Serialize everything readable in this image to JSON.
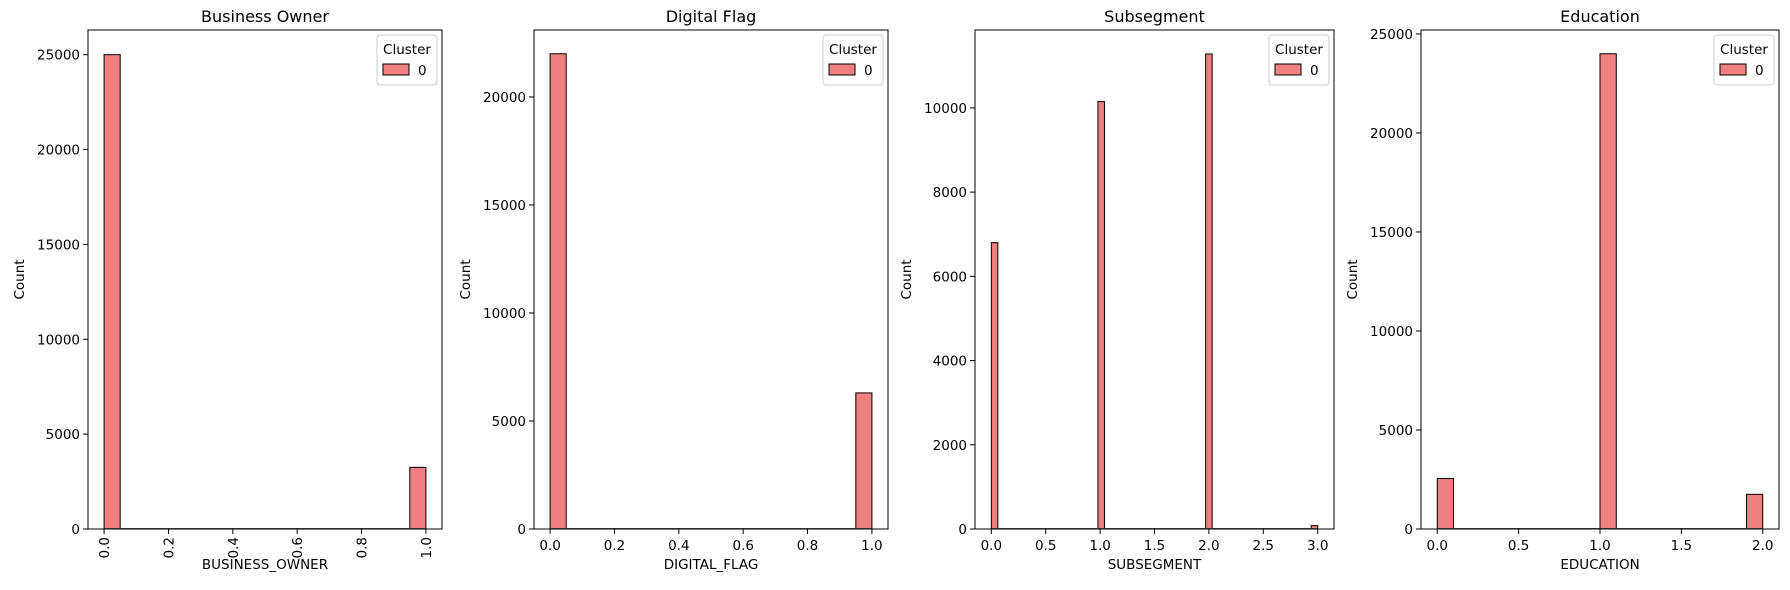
{
  "colors": {
    "bar_fill": "#f08080",
    "bar_edge": "#000000"
  },
  "chart_data": [
    {
      "type": "bar",
      "title": "Business Owner",
      "xlabel": "BUSINESS_OWNER",
      "ylabel": "Count",
      "xlim": [
        -0.05,
        1.05
      ],
      "ylim": [
        0,
        26300
      ],
      "xticks": [
        0.0,
        0.2,
        0.4,
        0.6,
        0.8,
        1.0
      ],
      "xtick_labels": [
        "0.0",
        "0.2",
        "0.4",
        "0.6",
        "0.8",
        "1.0"
      ],
      "xtick_rotation": -90,
      "yticks": [
        0,
        5000,
        10000,
        15000,
        20000,
        25000
      ],
      "ytick_labels": [
        "0",
        "5000",
        "10000",
        "15000",
        "20000",
        "25000"
      ],
      "bin_width": 0.05,
      "bars": [
        {
          "x": 0.0,
          "value": 25000
        },
        {
          "x": 0.95,
          "value": 3250
        }
      ],
      "legend": {
        "title": "Cluster",
        "entries": [
          "0"
        ],
        "position": "top-right"
      }
    },
    {
      "type": "bar",
      "title": "Digital Flag",
      "xlabel": "DIGITAL_FLAG",
      "ylabel": "Count",
      "xlim": [
        -0.05,
        1.05
      ],
      "ylim": [
        0,
        23100
      ],
      "xticks": [
        0.0,
        0.2,
        0.4,
        0.6,
        0.8,
        1.0
      ],
      "xtick_labels": [
        "0.0",
        "0.2",
        "0.4",
        "0.6",
        "0.8",
        "1.0"
      ],
      "xtick_rotation": 0,
      "yticks": [
        0,
        5000,
        10000,
        15000,
        20000
      ],
      "ytick_labels": [
        "0",
        "5000",
        "10000",
        "15000",
        "20000"
      ],
      "bin_width": 0.05,
      "bars": [
        {
          "x": 0.0,
          "value": 22000
        },
        {
          "x": 0.95,
          "value": 6300
        }
      ],
      "legend": {
        "title": "Cluster",
        "entries": [
          "0"
        ],
        "position": "top-right"
      }
    },
    {
      "type": "bar",
      "title": "Subsegment",
      "xlabel": "SUBSEGMENT",
      "ylabel": "Count",
      "xlim": [
        -0.15,
        3.15
      ],
      "ylim": [
        0,
        11850
      ],
      "xticks": [
        0.0,
        0.5,
        1.0,
        1.5,
        2.0,
        2.5,
        3.0
      ],
      "xtick_labels": [
        "0.0",
        "0.5",
        "1.0",
        "1.5",
        "2.0",
        "2.5",
        "3.0"
      ],
      "xtick_rotation": 0,
      "yticks": [
        0,
        2000,
        4000,
        6000,
        8000,
        10000
      ],
      "ytick_labels": [
        "0",
        "2000",
        "4000",
        "6000",
        "8000",
        "10000"
      ],
      "bin_width": 0.06,
      "bars": [
        {
          "x": 0.0,
          "value": 6800
        },
        {
          "x": 0.98,
          "value": 10150
        },
        {
          "x": 1.97,
          "value": 11280
        },
        {
          "x": 2.94,
          "value": 80
        }
      ],
      "legend": {
        "title": "Cluster",
        "entries": [
          "0"
        ],
        "position": "top-right"
      }
    },
    {
      "type": "bar",
      "title": "Education",
      "xlabel": "EDUCATION",
      "ylabel": "Count",
      "xlim": [
        -0.1,
        2.1
      ],
      "ylim": [
        0,
        25200
      ],
      "xticks": [
        0.0,
        0.5,
        1.0,
        1.5,
        2.0
      ],
      "xtick_labels": [
        "0.0",
        "0.5",
        "1.0",
        "1.5",
        "2.0"
      ],
      "xtick_rotation": 0,
      "yticks": [
        0,
        5000,
        10000,
        15000,
        20000,
        25000
      ],
      "ytick_labels": [
        "0",
        "5000",
        "10000",
        "15000",
        "20000",
        "25000"
      ],
      "bin_width": 0.1,
      "bars": [
        {
          "x": 0.0,
          "value": 2550
        },
        {
          "x": 1.0,
          "value": 24000
        },
        {
          "x": 1.9,
          "value": 1750
        }
      ],
      "legend": {
        "title": "Cluster",
        "entries": [
          "0"
        ],
        "position": "top-right"
      }
    }
  ]
}
